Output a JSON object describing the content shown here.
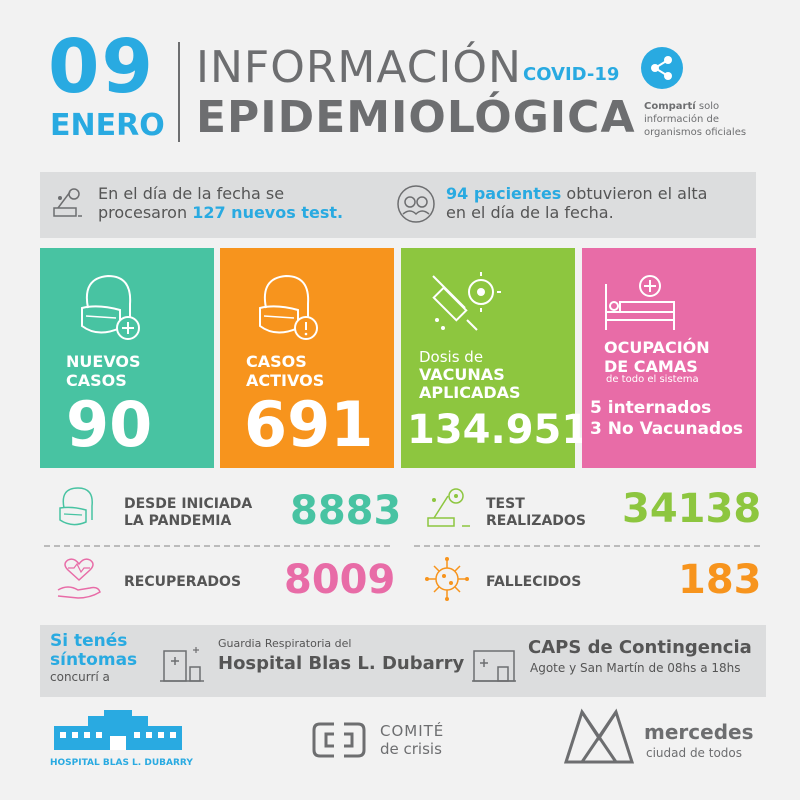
{
  "header": {
    "day": "09",
    "month": "ENERO",
    "title_line1": "INFORMACIÓN",
    "title_tag": "COVID-19",
    "title_line2": "EPIDEMIOLÓGICA",
    "share_bold": "Compartí",
    "share_rest": " solo",
    "share_line2": "información de",
    "share_line3": "organismos oficiales"
  },
  "info": {
    "left_line1": "En el día de la fecha se",
    "left_prefix": "procesaron ",
    "left_highlight": "127 nuevos test.",
    "right_highlight": "94 pacientes",
    "right_rest": " obtuvieron el alta",
    "right_line2": "en el día de la fecha."
  },
  "boxes": {
    "nuevos": {
      "label1": "NUEVOS",
      "label2": "CASOS",
      "value": "90"
    },
    "activos": {
      "label1": "CASOS",
      "label2": "ACTIVOS",
      "value": "691"
    },
    "vacunas": {
      "label1": "Dosis de",
      "label2": "VACUNAS",
      "label3": "APLICADAS",
      "value": "134.951"
    },
    "camas": {
      "label1": "OCUPACIÓN",
      "label2": "DE CAMAS",
      "sub": "de todo el sistema",
      "line1": "5 internados",
      "line2": "3 No Vacunados"
    }
  },
  "stats": {
    "pandemia": {
      "label1": "DESDE INICIADA",
      "label2": "LA PANDEMIA",
      "value": "8883"
    },
    "test": {
      "label1": "TEST",
      "label2": "REALIZADOS",
      "value": "34138"
    },
    "recuperados": {
      "label": "RECUPERADOS",
      "value": "8009"
    },
    "fallecidos": {
      "label": "FALLECIDOS",
      "value": "183"
    }
  },
  "contact": {
    "line1": "Si tenés",
    "line2": "síntomas",
    "line3": "concurrí a",
    "hosp_small": "Guardia Respiratoria del",
    "hosp_big": "Hospital Blas L. Dubarry",
    "caps_big": "CAPS de Contingencia",
    "caps_small": "Agote y San Martín de 08hs a 18hs"
  },
  "footer": {
    "hospital": "HOSPITAL BLAS L. DUBARRY",
    "comite1": "COMITÉ",
    "comite2": "de crisis",
    "mercedes1": "mercedes",
    "mercedes2": "ciudad de todos"
  },
  "colors": {
    "cyan": "#29aae1",
    "teal": "#48c3a2",
    "orange": "#f7941d",
    "green": "#8dc63f",
    "pink": "#e86ca7",
    "gray": "#6d6e70"
  },
  "icons": [
    "share-icon",
    "virus-test-icon",
    "patients-icon",
    "mask-person-icon",
    "mask-warning-icon",
    "vaccine-icon",
    "hospital-bed-icon",
    "heart-hand-icon",
    "virus-icon",
    "building-icon"
  ]
}
